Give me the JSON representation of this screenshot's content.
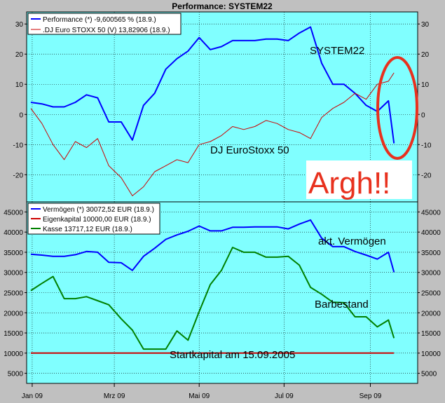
{
  "window_title": "Performance: SYSTEM22",
  "colors": {
    "background": "#C0C0C0",
    "plot_bg": "#80FFFF",
    "grid": "#000000",
    "performance": "#0000FF",
    "eurostoxx": "#CC0000",
    "vermoegen": "#0000FF",
    "eigenkapital": "#CC0000",
    "kasse": "#008000",
    "annotation_red": "#E8311E"
  },
  "x_axis": {
    "ticks": [
      "Jan 09",
      "Mrz 09",
      "Mai 09",
      "Jul 09",
      "Sep 09"
    ]
  },
  "chart_data": [
    {
      "type": "line",
      "title": "Performance: SYSTEM22",
      "yticks_left": [
        "30",
        "20",
        "10",
        "0",
        "-10",
        "-20"
      ],
      "yticks_right": [
        "30",
        "20",
        "10",
        "0",
        "-10",
        "-20"
      ],
      "ylim": [
        -29,
        34
      ],
      "grid": true,
      "legend_position": "top-left",
      "x": [
        "2008-12-31",
        "2009-01-08",
        "2009-01-16",
        "2009-01-24",
        "2009-02-01",
        "2009-02-09",
        "2009-02-17",
        "2009-02-25",
        "2009-03-06",
        "2009-03-14",
        "2009-03-22",
        "2009-03-30",
        "2009-04-07",
        "2009-04-15",
        "2009-04-23",
        "2009-05-01",
        "2009-05-09",
        "2009-05-17",
        "2009-05-25",
        "2009-06-02",
        "2009-06-10",
        "2009-06-18",
        "2009-06-26",
        "2009-07-04",
        "2009-07-12",
        "2009-07-20",
        "2009-07-28",
        "2009-08-05",
        "2009-08-13",
        "2009-08-21",
        "2009-08-29",
        "2009-09-06",
        "2009-09-14",
        "2009-09-18"
      ],
      "series": [
        {
          "name": "Performance (*) -9,600565 % (18.9.)",
          "legend": "Performance (*) -9,600565 % (18.9.)",
          "color": "#0000FF",
          "values": [
            4,
            3.5,
            2.5,
            2.5,
            4,
            6.5,
            5.5,
            -2.5,
            -2.5,
            -8.5,
            3,
            7,
            15,
            18.5,
            21,
            25.5,
            21.5,
            22.5,
            24.5,
            24.5,
            24.5,
            25,
            25,
            24.5,
            27,
            29,
            17,
            10,
            10,
            7,
            3,
            1,
            4.5,
            -9.6
          ]
        },
        {
          "name": "DJ Euro STOXX 50 (V) 13,82906 (18.9.)",
          "legend": ".DJ Euro STOXX 50 (V) 13,82906 (18.9.)",
          "color": "#CC0000",
          "values": [
            2,
            -3,
            -10,
            -15,
            -9,
            -11,
            -8,
            -17,
            -21,
            -27,
            -24,
            -19,
            -17,
            -15,
            -16,
            -10,
            -9,
            -7,
            -4,
            -5,
            -4,
            -2,
            -3,
            -5,
            -6,
            -8,
            -1,
            2,
            4,
            7,
            5,
            10,
            11,
            13.8
          ]
        }
      ],
      "annotations": [
        "SYSTEM22",
        "DJ EuroStoxx 50",
        "Argh!!"
      ]
    },
    {
      "type": "line",
      "yticks_left": [
        "45000",
        "40000",
        "35000",
        "30000",
        "25000",
        "20000",
        "15000",
        "10000",
        "5000"
      ],
      "yticks_right": [
        "45000",
        "40000",
        "35000",
        "30000",
        "25000",
        "20000",
        "15000",
        "10000",
        "5000"
      ],
      "ylim": [
        2500,
        47500
      ],
      "grid": true,
      "legend_position": "top-left",
      "x": [
        "2008-12-31",
        "2009-01-08",
        "2009-01-16",
        "2009-01-24",
        "2009-02-01",
        "2009-02-09",
        "2009-02-17",
        "2009-02-25",
        "2009-03-06",
        "2009-03-14",
        "2009-03-22",
        "2009-03-30",
        "2009-04-07",
        "2009-04-15",
        "2009-04-23",
        "2009-05-01",
        "2009-05-09",
        "2009-05-17",
        "2009-05-25",
        "2009-06-02",
        "2009-06-10",
        "2009-06-18",
        "2009-06-26",
        "2009-07-04",
        "2009-07-12",
        "2009-07-20",
        "2009-07-28",
        "2009-08-05",
        "2009-08-13",
        "2009-08-21",
        "2009-08-29",
        "2009-09-06",
        "2009-09-14",
        "2009-09-18"
      ],
      "series": [
        {
          "name": "Vermögen (*) 30072,52 EUR (18.9.)",
          "legend": "Vermögen (*) 30072,52 EUR (18.9.)",
          "color": "#0000FF",
          "values": [
            34500,
            34300,
            34000,
            34000,
            34400,
            35200,
            35000,
            32500,
            32400,
            30500,
            34000,
            36000,
            38200,
            39300,
            40200,
            41500,
            40300,
            40300,
            41200,
            41200,
            41300,
            41300,
            41300,
            40800,
            42000,
            43000,
            38500,
            36400,
            36400,
            35200,
            34300,
            33300,
            35000,
            30072
          ]
        },
        {
          "name": "Eigenkapital 10000,00 EUR (18.9.)",
          "legend": "Eigenkapital 10000,00 EUR (18.9.)",
          "color": "#CC0000",
          "values": [
            10000,
            10000,
            10000,
            10000,
            10000,
            10000,
            10000,
            10000,
            10000,
            10000,
            10000,
            10000,
            10000,
            10000,
            10000,
            10000,
            10000,
            10000,
            10000,
            10000,
            10000,
            10000,
            10000,
            10000,
            10000,
            10000,
            10000,
            10000,
            10000,
            10000,
            10000,
            10000,
            10000,
            10000
          ]
        },
        {
          "name": "Kasse 13717,12 EUR (18.9.)",
          "legend": "Kasse 13717,12 EUR (18.9.)",
          "color": "#008000",
          "values": [
            25500,
            27300,
            29000,
            23500,
            23500,
            24000,
            23000,
            22000,
            18500,
            15700,
            11000,
            11000,
            11000,
            15500,
            13200,
            20300,
            27000,
            30500,
            36200,
            35000,
            35000,
            33800,
            33800,
            34000,
            31800,
            26300,
            24600,
            22600,
            22500,
            19000,
            19000,
            16500,
            18200,
            13717
          ]
        }
      ],
      "annotations": [
        "akt. Vermögen",
        "Barbestand",
        "Startkapital am 15.09.2005"
      ]
    }
  ]
}
